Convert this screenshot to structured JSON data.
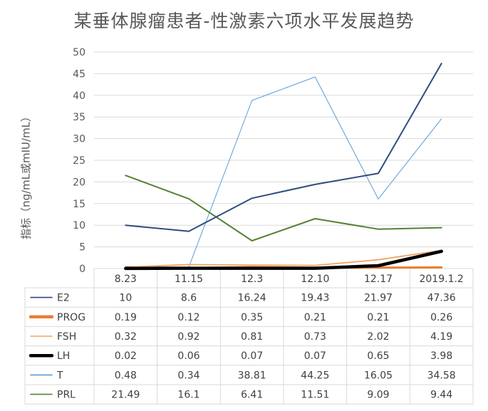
{
  "chart_data": {
    "type": "line",
    "title": "某垂体腺瘤患者-性激素六项水平发展趋势",
    "ylabel": "指标（ng/mL或mIU/mL）",
    "xlabel": "",
    "categories": [
      "8.23",
      "11.15",
      "12.3",
      "12.10",
      "12.17",
      "2019.1.2"
    ],
    "ylim": [
      0,
      50
    ],
    "yticks": [
      "0",
      "5",
      "10",
      "15",
      "20",
      "25",
      "30",
      "35",
      "40",
      "45",
      "50"
    ],
    "grid": true,
    "legend": "data table",
    "series": [
      {
        "name": "E2",
        "color": "#2F4D7E",
        "values": [
          10,
          8.6,
          16.24,
          19.43,
          21.97,
          47.36
        ]
      },
      {
        "name": "PROG",
        "color": "#ED7D31",
        "values": [
          0.19,
          0.12,
          0.35,
          0.21,
          0.21,
          0.26
        ]
      },
      {
        "name": "FSH",
        "color": "#F4A460",
        "values": [
          0.32,
          0.92,
          0.81,
          0.73,
          2.02,
          4.19
        ]
      },
      {
        "name": "LH",
        "color": "#000000",
        "values": [
          0.02,
          0.06,
          0.07,
          0.07,
          0.65,
          3.98
        ]
      },
      {
        "name": "T",
        "color": "#5B9BD5",
        "values": [
          0.48,
          0.34,
          38.81,
          44.25,
          16.05,
          34.58
        ]
      },
      {
        "name": "PRL",
        "color": "#548235",
        "values": [
          21.49,
          16.1,
          6.41,
          11.51,
          9.09,
          9.44
        ]
      }
    ]
  }
}
